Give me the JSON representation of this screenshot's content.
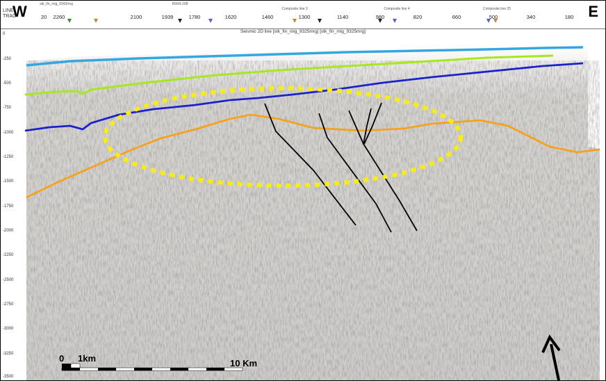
{
  "header": {
    "line_label": "LINE",
    "trace_label": "TRAC",
    "west_label": "W",
    "east_label": "E",
    "first_trace": "20",
    "trace_numbers": [
      "2260",
      "2100",
      "1939",
      "1780",
      "1620",
      "1460",
      "1300",
      "1140",
      "980",
      "820",
      "660",
      "500",
      "340",
      "180"
    ],
    "tie_line_labels": [
      "stk_fin_mig_9342mrg",
      "R5N0-208",
      "Composite line 3",
      "Composite line 4",
      "Composite line 25"
    ]
  },
  "section_title": "Seismic 2D line [stk_fin_mig_9325mrg] [stk_fin_mig_9325mrg]",
  "depth_axis": [
    "0",
    "-250",
    "-500",
    "-750",
    "-1000",
    "-1250",
    "-1500",
    "-1750",
    "-2000",
    "-2250",
    "-2500",
    "-2750",
    "-3000",
    "-3250",
    "-3500"
  ],
  "scale_bar": {
    "zero_label": "0",
    "first_label": "1km",
    "end_label": "10 Km"
  },
  "colors": {
    "seafloor": "#35a7e0",
    "horizon_shallow": "#a6e81e",
    "horizon_mid": "#1b22c9",
    "horizon_deep": "#f5a21c",
    "highlight_ellipse": "#f8ec15",
    "faults": "#000000"
  },
  "icons": {
    "north_arrow": "arrow-up-icon"
  }
}
